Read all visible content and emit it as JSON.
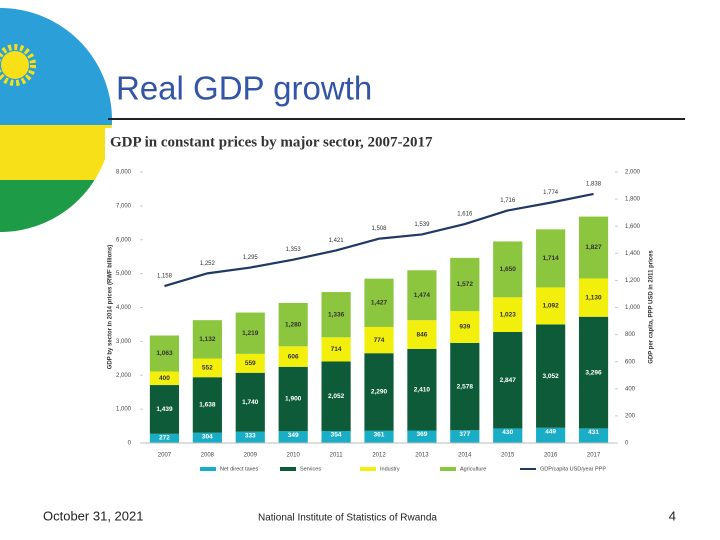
{
  "title": "Real GDP growth",
  "footer": {
    "date": "October 31, 2021",
    "source": "National Institute of Statistics of Rwanda",
    "page": 4
  },
  "chart_data": {
    "type": "bar",
    "stacked": true,
    "title": "GDP in constant prices by major sector, 2007-2017",
    "y_label": "GDP by sector in 2014 prices (RWF billions)",
    "y2_label": "GDP per capita, PPP USD in 2011 prices",
    "categories": [
      "2007",
      "2008",
      "2009",
      "2010",
      "2011",
      "2012",
      "2013",
      "2014",
      "2015",
      "2016",
      "2017"
    ],
    "ylim": [
      0,
      8000
    ],
    "yticks": [
      0,
      {
        "value": 1000,
        "label": "1,000"
      },
      {
        "value": 2000,
        "label": "2,000"
      },
      {
        "value": 3000,
        "label": "3,000"
      },
      {
        "value": 4000,
        "label": "4,000"
      },
      {
        "value": 5000,
        "label": "5,000"
      },
      {
        "value": 6000,
        "label": "6,000"
      },
      {
        "value": 7000,
        "label": "7,000"
      },
      {
        "value": 8000,
        "label": "8,000"
      }
    ],
    "y2lim": [
      0,
      2000
    ],
    "y2ticks": [
      0,
      200,
      400,
      600,
      800,
      {
        "value": 1000,
        "label": "1,000"
      },
      {
        "value": 1200,
        "label": "1,200"
      },
      {
        "value": 1400,
        "label": "1,400"
      },
      {
        "value": 1600,
        "label": "1,600"
      },
      {
        "value": 1800,
        "label": "1,800"
      },
      {
        "value": 2000,
        "label": "2,000"
      }
    ],
    "grid": false,
    "legend": "bottom",
    "series": [
      {
        "name": "Net direct taxes",
        "color": "#1aaec6",
        "label_color": "#ffffff",
        "values": [
          272,
          304,
          333,
          349,
          354,
          361,
          369,
          377,
          430,
          449,
          431
        ]
      },
      {
        "name": "Services",
        "color": "#0e5b3a",
        "label_color": "#ffffff",
        "values": [
          1439,
          1638,
          1740,
          1900,
          2052,
          2290,
          2410,
          2578,
          2847,
          3052,
          3296
        ],
        "value_labels": [
          "1,439",
          "1,638",
          "1,740",
          "1,900",
          "2,052",
          "2,290",
          "2,410",
          "2,578",
          "2,847",
          "3,052",
          "3,296"
        ]
      },
      {
        "name": "Industry",
        "color": "#f3ef0c",
        "label_color": "#333333",
        "values": [
          400,
          552,
          559,
          606,
          714,
          774,
          846,
          939,
          1023,
          1092,
          1130
        ],
        "value_labels": [
          "400",
          "552",
          "559",
          "606",
          "714",
          "774",
          "846",
          "939",
          "1,023",
          "1,092",
          "1,130"
        ]
      },
      {
        "name": "Agriculture",
        "color": "#8cc63f",
        "label_color": "#333333",
        "values": [
          1063,
          1132,
          1219,
          1280,
          1336,
          1427,
          1474,
          1572,
          1650,
          1714,
          1827
        ],
        "value_labels": [
          "1,063",
          "1,132",
          "1,219",
          "1,280",
          "1,336",
          "1,427",
          "1,474",
          "1,572",
          "1,650",
          "1,714",
          "1,827"
        ]
      },
      {
        "name": "GDP/capita USD/year PPP",
        "type": "line",
        "axis": "y2",
        "color": "#1f3864",
        "label_color": "#333333",
        "values": [
          1158,
          1252,
          1295,
          1353,
          1421,
          1508,
          1539,
          1616,
          1716,
          1774,
          1838
        ],
        "value_labels": [
          "1,158",
          "1,252",
          "1,295",
          "1,353",
          "1,421",
          "1,508",
          "1,539",
          "1,616",
          "1,716",
          "1,774",
          "1,838"
        ]
      }
    ]
  }
}
